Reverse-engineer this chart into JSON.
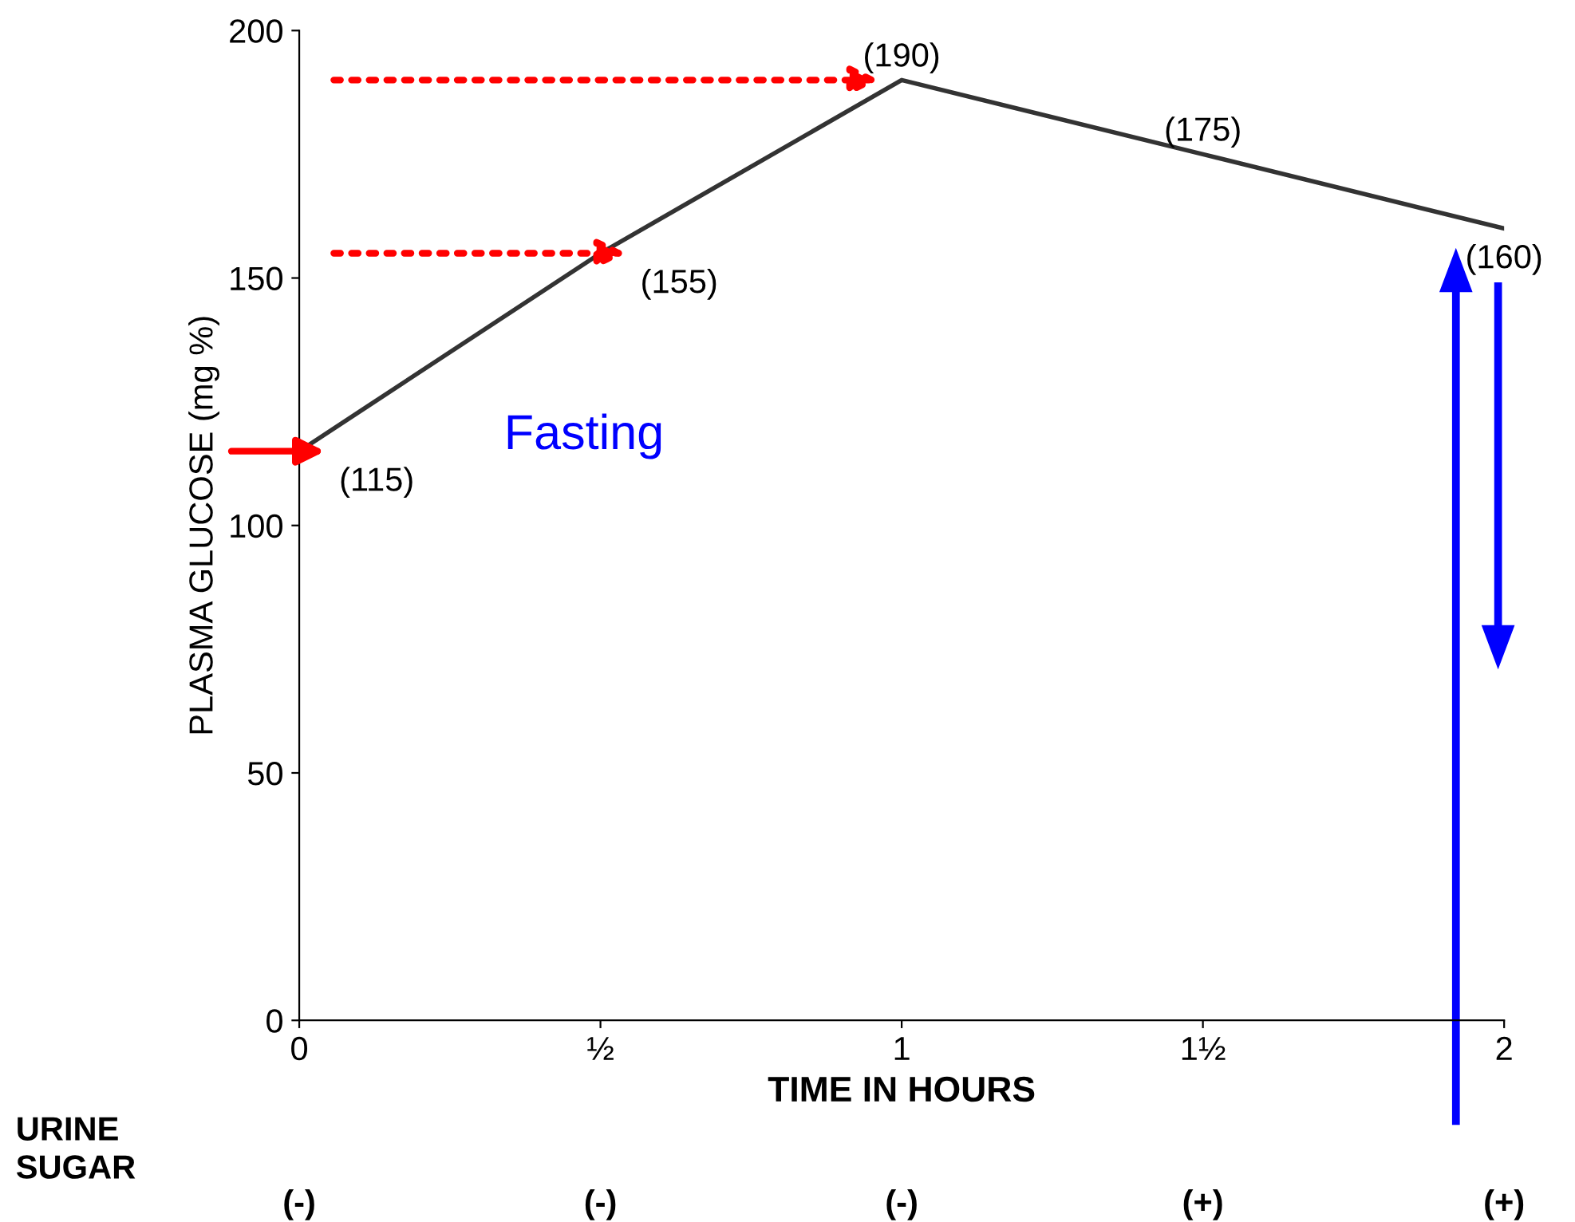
{
  "chart_data": {
    "type": "line",
    "xlabel": "TIME IN HOURS",
    "ylabel": "PLASMA GLUCOSE (mg %)",
    "x": [
      0,
      0.5,
      1,
      1.5,
      2
    ],
    "series": [
      {
        "color": "#333333",
        "values": [
          115,
          155,
          190,
          175,
          160
        ],
        "value_labels": [
          "(115)",
          "(155)",
          "(190)",
          "(175)",
          "(160)"
        ]
      }
    ],
    "xlim": [
      0,
      2
    ],
    "ylim": [
      0,
      200
    ],
    "xticks": [
      0,
      {
        "value": 0.5,
        "label": "½"
      },
      1,
      {
        "value": 1.5,
        "label": "1½"
      },
      2
    ],
    "yticks": [
      0,
      50,
      100,
      150,
      200
    ],
    "grid": false,
    "marker": "none",
    "line_style": "solid",
    "annotations": [
      "Fasting",
      "URINE\nSUGAR",
      "(-)",
      "(-)",
      "(-)",
      "(+)",
      "(+)"
    ]
  }
}
